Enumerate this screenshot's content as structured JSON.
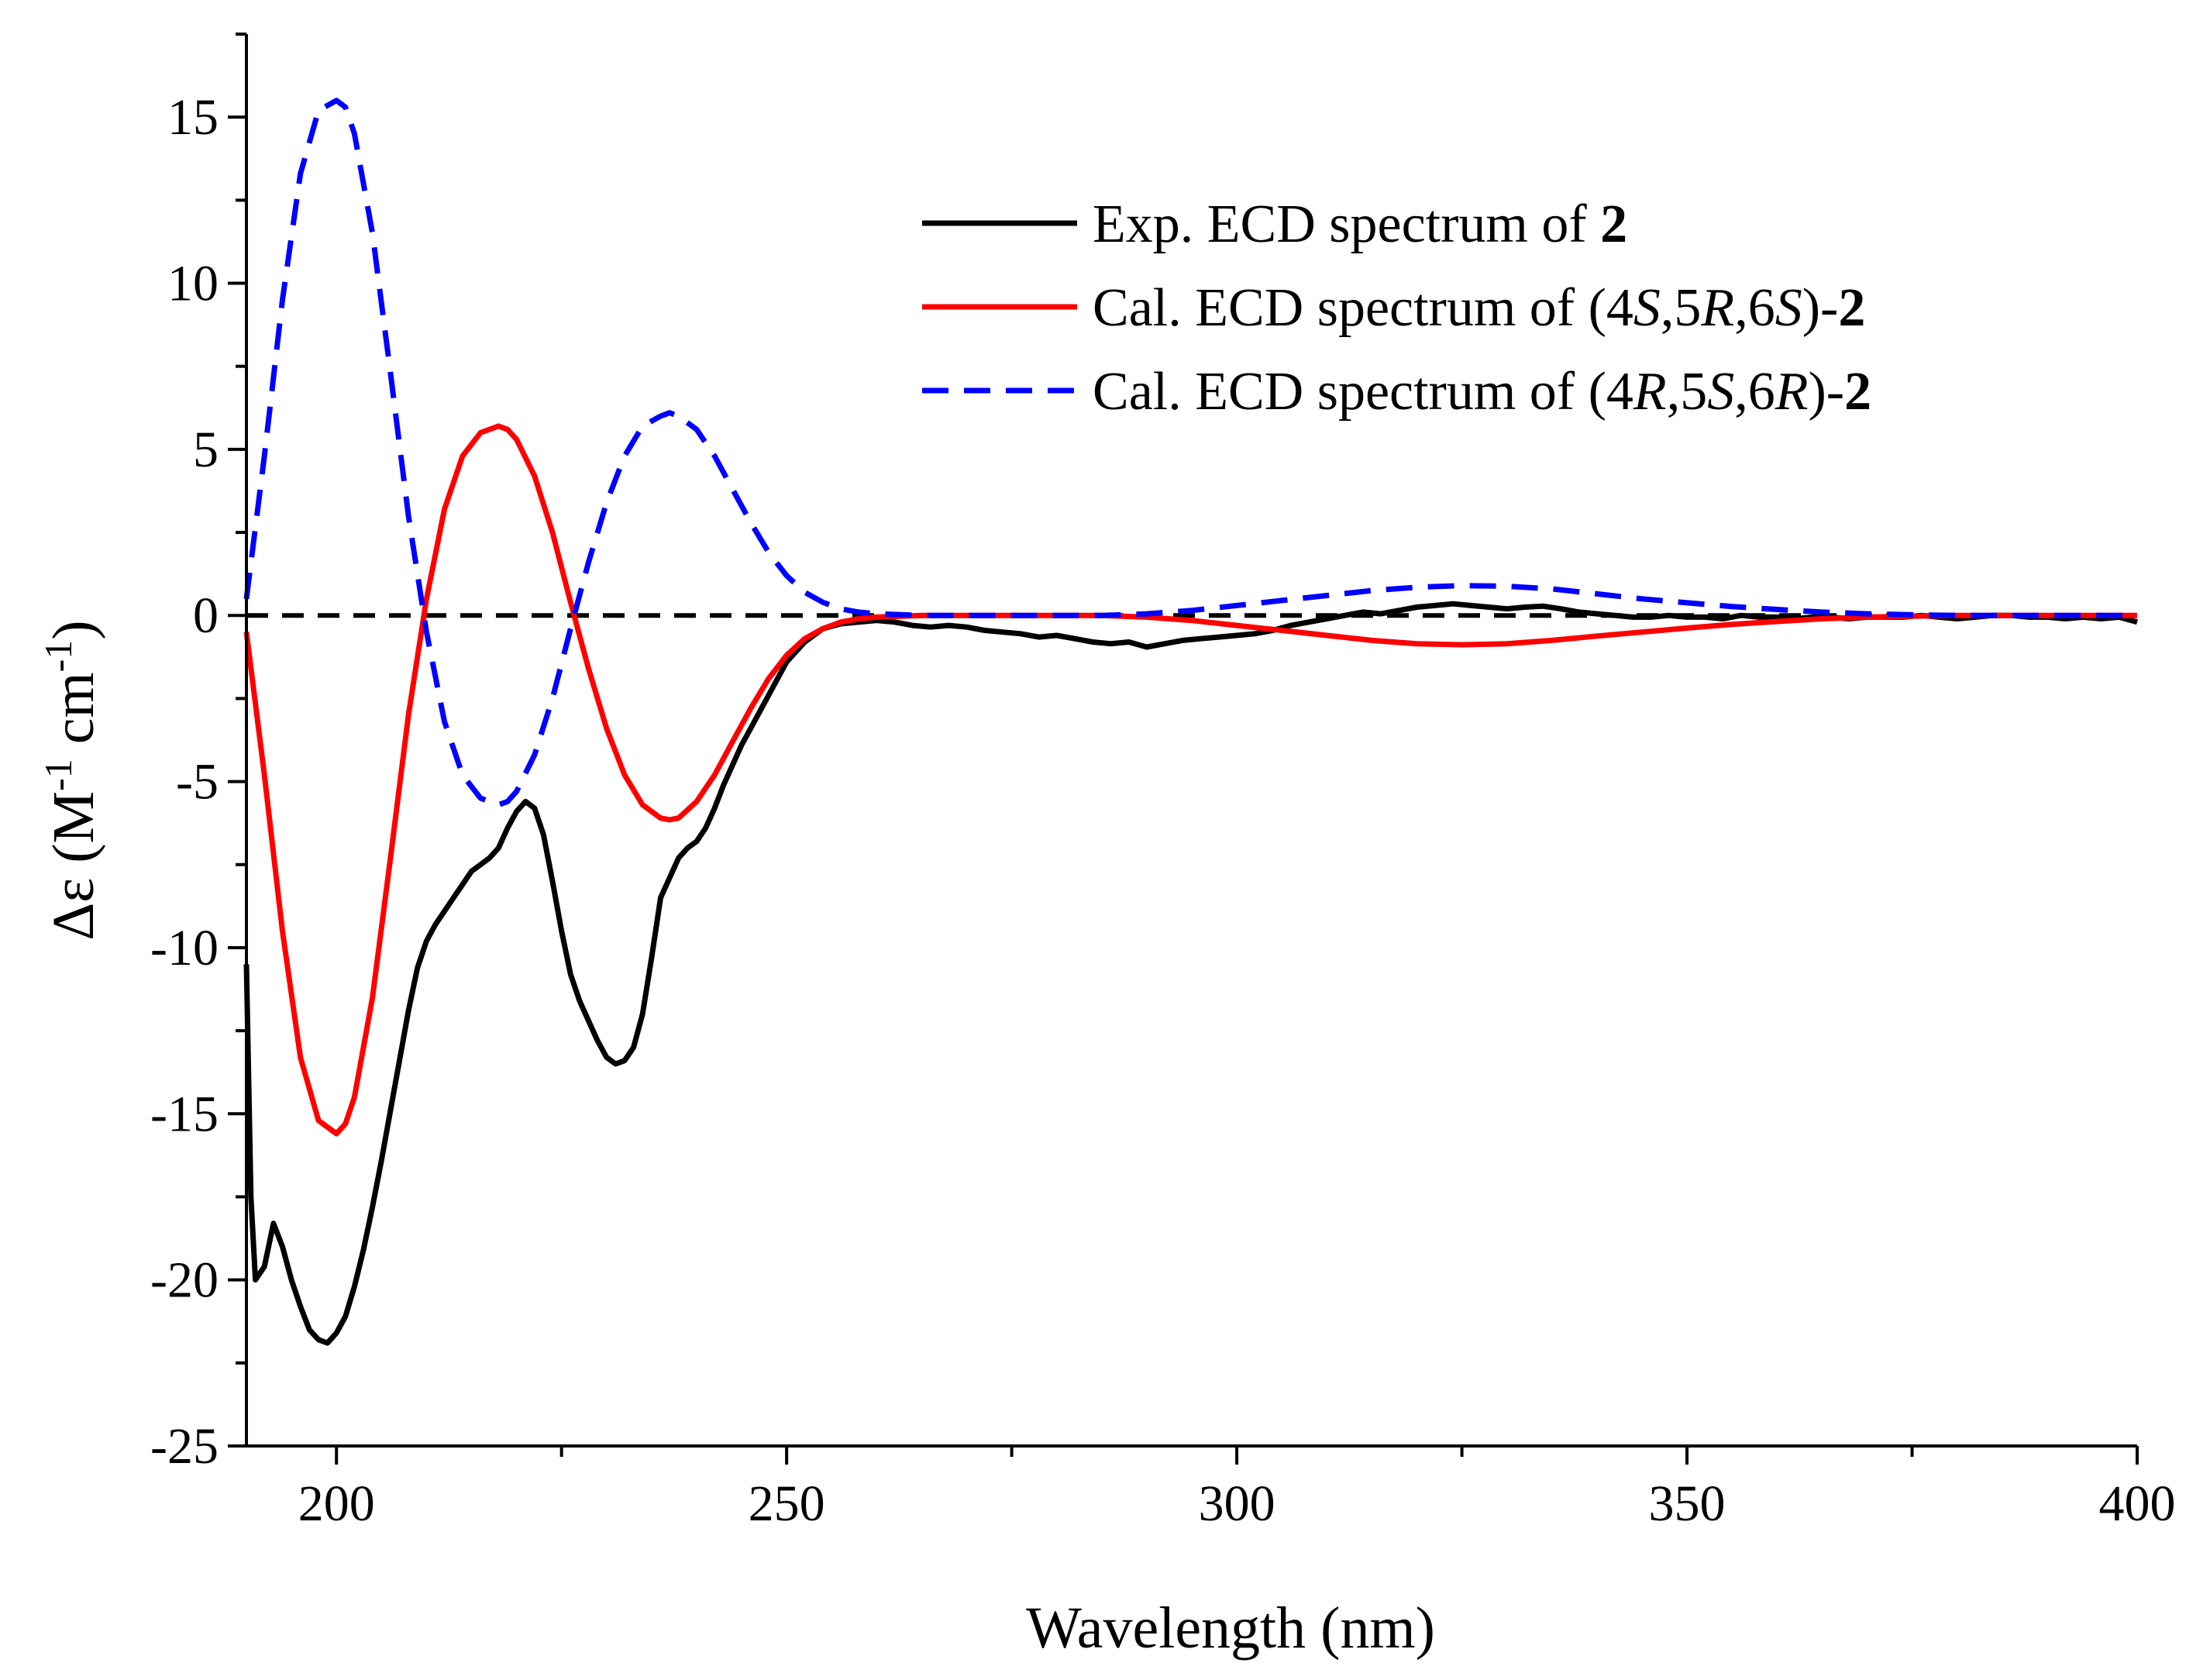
{
  "chart_data": {
    "type": "line",
    "title": "",
    "xlabel": "Wavelength (nm)",
    "ylabel": {
      "delta": "Δε",
      "open": " (M",
      "sup1": "-1",
      "mid": " cm",
      "sup2": "-1",
      "close": ")"
    },
    "xlim": [
      190,
      400
    ],
    "ylim": [
      -25,
      17.5
    ],
    "xticks": [
      200,
      250,
      300,
      350,
      400
    ],
    "yticks": [
      -25,
      -20,
      -15,
      -10,
      -5,
      0,
      5,
      10,
      15
    ],
    "grid": false,
    "legend_position": "top-right",
    "zero_line": {
      "y": 0,
      "color": "#000000",
      "style": "dashed"
    },
    "series": [
      {
        "name": "Exp. ECD spectrum of 2",
        "legend": {
          "pre": "Exp. ECD spectrum of ",
          "bold": "2"
        },
        "color": "#000000",
        "style": "solid",
        "x": [
          190,
          190.5,
          191,
          192,
          193,
          194,
          195,
          196,
          197,
          198,
          199,
          200,
          201,
          202,
          203,
          204,
          205,
          206,
          207,
          208,
          209,
          210,
          211,
          212,
          213,
          214,
          215,
          216,
          217,
          218,
          219,
          220,
          221,
          222,
          223,
          224,
          225,
          226,
          227,
          228,
          229,
          230,
          231,
          232,
          233,
          234,
          235,
          236,
          237,
          238,
          239,
          240,
          241,
          242,
          243,
          244,
          245,
          246,
          247,
          248,
          249,
          250,
          252,
          254,
          256,
          258,
          260,
          262,
          264,
          266,
          268,
          270,
          272,
          274,
          276,
          278,
          280,
          282,
          284,
          286,
          288,
          290,
          292,
          294,
          296,
          298,
          300,
          302,
          304,
          306,
          308,
          310,
          312,
          314,
          316,
          318,
          320,
          322,
          324,
          326,
          328,
          330,
          332,
          334,
          336,
          338,
          340,
          342,
          344,
          346,
          348,
          350,
          352,
          354,
          356,
          358,
          360,
          362,
          364,
          366,
          368,
          370,
          372,
          374,
          376,
          378,
          380,
          382,
          384,
          386,
          388,
          390,
          392,
          394,
          396,
          398,
          400
        ],
        "y": [
          -10.5,
          -17.5,
          -20.0,
          -19.6,
          -18.3,
          -19.0,
          -20.0,
          -20.8,
          -21.5,
          -21.8,
          -21.9,
          -21.6,
          -21.1,
          -20.2,
          -19.1,
          -17.8,
          -16.4,
          -14.9,
          -13.4,
          -11.9,
          -10.6,
          -9.8,
          -9.3,
          -8.9,
          -8.5,
          -8.1,
          -7.7,
          -7.5,
          -7.3,
          -7.0,
          -6.4,
          -5.9,
          -5.6,
          -5.8,
          -6.6,
          -8.0,
          -9.5,
          -10.8,
          -11.6,
          -12.2,
          -12.8,
          -13.3,
          -13.5,
          -13.4,
          -13.0,
          -12.0,
          -10.3,
          -8.5,
          -7.9,
          -7.3,
          -7.0,
          -6.8,
          -6.4,
          -5.8,
          -5.1,
          -4.5,
          -3.9,
          -3.4,
          -2.9,
          -2.4,
          -1.9,
          -1.4,
          -0.8,
          -0.4,
          -0.25,
          -0.2,
          -0.15,
          -0.2,
          -0.3,
          -0.35,
          -0.3,
          -0.35,
          -0.45,
          -0.5,
          -0.55,
          -0.65,
          -0.6,
          -0.7,
          -0.8,
          -0.85,
          -0.8,
          -0.95,
          -0.85,
          -0.75,
          -0.7,
          -0.65,
          -0.6,
          -0.55,
          -0.45,
          -0.3,
          -0.2,
          -0.1,
          0.0,
          0.1,
          0.05,
          0.15,
          0.25,
          0.3,
          0.35,
          0.3,
          0.25,
          0.2,
          0.25,
          0.28,
          0.2,
          0.1,
          0.05,
          0.0,
          -0.05,
          -0.05,
          0.0,
          -0.05,
          -0.05,
          -0.1,
          0.0,
          -0.05,
          -0.05,
          -0.1,
          -0.05,
          -0.05,
          -0.1,
          -0.05,
          -0.05,
          -0.05,
          0.0,
          -0.05,
          -0.1,
          -0.05,
          0.0,
          0.0,
          -0.05,
          -0.05,
          -0.1,
          -0.05,
          -0.1,
          -0.05,
          -0.2
        ]
      },
      {
        "name": "Cal. ECD spectrum of (4S,5R,6S)-2",
        "legend": {
          "pre": "Cal. ECD spectrum of (4",
          "i1": "S",
          "mid1": ",5",
          "i2": "R",
          "mid2": ",6",
          "i3": "S",
          "post": ")-",
          "bold": "2"
        },
        "color": "#ff0000",
        "style": "solid",
        "x": [
          190,
          192,
          194,
          196,
          198,
          200,
          201,
          202,
          204,
          206,
          208,
          210,
          212,
          214,
          216,
          218,
          219,
          220,
          222,
          224,
          226,
          228,
          230,
          232,
          234,
          236,
          237,
          238,
          240,
          242,
          244,
          246,
          248,
          250,
          252,
          254,
          256,
          258,
          260,
          265,
          270,
          275,
          280,
          285,
          290,
          295,
          300,
          305,
          310,
          315,
          320,
          325,
          330,
          335,
          340,
          345,
          350,
          355,
          360,
          365,
          370,
          375,
          380,
          385,
          390,
          395,
          400
        ],
        "y": [
          -0.5,
          -4.8,
          -9.5,
          -13.3,
          -15.2,
          -15.6,
          -15.3,
          -14.5,
          -11.5,
          -7.3,
          -3.0,
          0.5,
          3.2,
          4.8,
          5.5,
          5.7,
          5.6,
          5.3,
          4.2,
          2.5,
          0.4,
          -1.6,
          -3.4,
          -4.8,
          -5.7,
          -6.1,
          -6.15,
          -6.1,
          -5.6,
          -4.8,
          -3.8,
          -2.8,
          -1.9,
          -1.2,
          -0.7,
          -0.4,
          -0.2,
          -0.1,
          -0.05,
          0.0,
          0.0,
          0.0,
          0.0,
          0.0,
          -0.05,
          -0.15,
          -0.3,
          -0.45,
          -0.6,
          -0.75,
          -0.85,
          -0.88,
          -0.85,
          -0.75,
          -0.62,
          -0.5,
          -0.38,
          -0.27,
          -0.18,
          -0.1,
          -0.05,
          -0.02,
          0.0,
          0.0,
          0.0,
          0.0,
          0.0
        ]
      },
      {
        "name": "Cal. ECD spectrum of (4R,5S,6R)-2",
        "legend": {
          "pre": "Cal. ECD spectrum of (4",
          "i1": "R",
          "mid1": ",5",
          "i2": "S",
          "mid2": ",6",
          "i3": "R",
          "post": ")-",
          "bold": "2"
        },
        "color": "#0000ff",
        "style": "dashed",
        "x": [
          190,
          192,
          194,
          196,
          198,
          200,
          201,
          202,
          204,
          206,
          208,
          210,
          212,
          214,
          216,
          218,
          219,
          220,
          222,
          224,
          226,
          228,
          230,
          232,
          234,
          236,
          237,
          238,
          240,
          242,
          244,
          246,
          248,
          250,
          252,
          254,
          256,
          258,
          260,
          265,
          270,
          275,
          280,
          285,
          290,
          295,
          300,
          305,
          310,
          315,
          320,
          325,
          330,
          335,
          340,
          345,
          350,
          355,
          360,
          365,
          370,
          375,
          380,
          385,
          390,
          395,
          400
        ],
        "y": [
          0.5,
          4.8,
          9.5,
          13.3,
          15.2,
          15.5,
          15.3,
          14.5,
          11.5,
          7.3,
          3.0,
          -0.5,
          -3.2,
          -4.8,
          -5.5,
          -5.7,
          -5.6,
          -5.3,
          -4.2,
          -2.5,
          -0.4,
          1.6,
          3.4,
          4.8,
          5.7,
          6.0,
          6.1,
          6.0,
          5.6,
          4.8,
          3.8,
          2.8,
          1.9,
          1.2,
          0.7,
          0.4,
          0.2,
          0.1,
          0.05,
          0.0,
          0.0,
          0.0,
          0.0,
          0.0,
          0.05,
          0.15,
          0.3,
          0.45,
          0.6,
          0.75,
          0.85,
          0.9,
          0.88,
          0.8,
          0.65,
          0.5,
          0.38,
          0.27,
          0.18,
          0.1,
          0.05,
          0.02,
          0.0,
          0.0,
          0.0,
          0.0,
          0.0
        ]
      }
    ]
  }
}
